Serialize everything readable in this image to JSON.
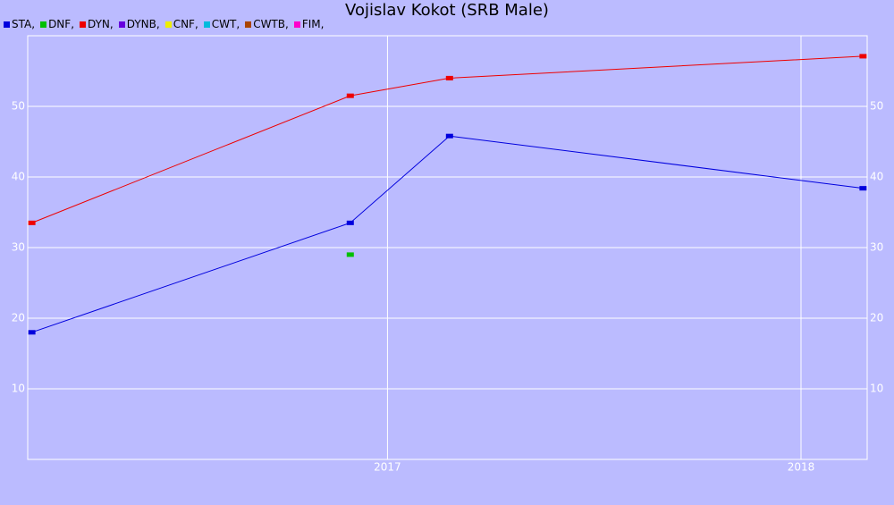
{
  "chart_data": {
    "type": "line",
    "title": "Vojislav Kokot (SRB Male)",
    "x": [
      2016.14,
      2016.91,
      2017.15,
      2018.15
    ],
    "xlim": [
      2016.13,
      2018.16
    ],
    "xticks": [
      2017,
      2018
    ],
    "ylim": [
      0,
      60
    ],
    "yticks": [
      10,
      20,
      30,
      40,
      50
    ],
    "grid": true,
    "series": [
      {
        "name": "STA",
        "color": "#0000dd",
        "values": [
          18,
          33.5,
          45.8,
          38.4
        ]
      },
      {
        "name": "DNF",
        "color": "#00c000",
        "values": [
          null,
          29,
          null,
          null
        ]
      },
      {
        "name": "DYN",
        "color": "#ee0000",
        "values": [
          33.5,
          51.5,
          54,
          57.1
        ]
      },
      {
        "name": "DYNB",
        "color": "#6600dd",
        "values": [
          null,
          null,
          null,
          null
        ]
      },
      {
        "name": "CNF",
        "color": "#eeee00",
        "values": [
          null,
          null,
          null,
          null
        ]
      },
      {
        "name": "CWT",
        "color": "#00bbdd",
        "values": [
          null,
          null,
          null,
          null
        ]
      },
      {
        "name": "CWTB",
        "color": "#aa4400",
        "values": [
          null,
          null,
          null,
          null
        ]
      },
      {
        "name": "FIM",
        "color": "#ff00cc",
        "values": [
          null,
          null,
          null,
          null
        ]
      }
    ]
  }
}
